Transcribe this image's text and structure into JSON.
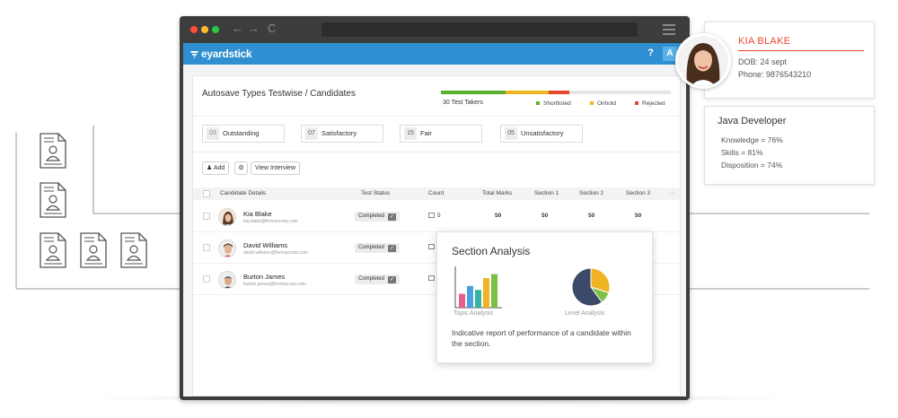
{
  "brand": {
    "name": "eyardstick",
    "color": "#2f8fd0"
  },
  "browser": {
    "nav_back": "←",
    "nav_forward": "→",
    "nav_reload": "C"
  },
  "appbar": {
    "help": "?",
    "account": "A"
  },
  "page": {
    "title": "Autosave Types Testwise / Candidates",
    "progress": {
      "label": "30 Test Takers",
      "segments": [
        {
          "name": "Shortlisted",
          "fraction": 0.28,
          "color": "#5bb12f"
        },
        {
          "name": "Onhold",
          "fraction": 0.19,
          "color": "#f0b323"
        },
        {
          "name": "Rejected",
          "fraction": 0.09,
          "color": "#e8452c"
        }
      ]
    },
    "ratings": [
      {
        "count": "03",
        "label": "Outstanding"
      },
      {
        "count": "07",
        "label": "Satisfactory"
      },
      {
        "count": "15",
        "label": "Fair"
      },
      {
        "count": "05",
        "label": "Unsatisfactory"
      }
    ],
    "actions": {
      "add": "Add",
      "view_interview": "View Interview"
    },
    "table": {
      "headers": [
        "Candidate Details",
        "Test Status",
        "Count",
        "Total Marks",
        "Section 1",
        "Section 2",
        "Section 3",
        "‹ ›"
      ],
      "rows": [
        {
          "name": "Kia Blake",
          "email": "kia.blake@formaccorp.com",
          "status": "Completed",
          "count": "5",
          "total": "50",
          "s1": "50",
          "s2": "50",
          "s3": "50"
        },
        {
          "name": "David Williams",
          "email": "david.williams@formaccorp.com",
          "status": "Completed",
          "count": "",
          "total": "",
          "s1": "",
          "s2": "",
          "s3": ""
        },
        {
          "name": "Burton James",
          "email": "burton.james@formaccorp.com",
          "status": "Completed",
          "count": "",
          "total": "",
          "s1": "",
          "s2": "",
          "s3": ""
        }
      ]
    }
  },
  "section_analysis": {
    "title": "Section Analysis",
    "topic_label": "Topic Analysis",
    "level_label": "Level Analysis",
    "description": "Indicative report of performance of a candidate within the section.",
    "bar_colors": [
      "#e85d8a",
      "#4aa3df",
      "#34b6a6",
      "#f0b323",
      "#7bc043"
    ],
    "bar_values": [
      0.35,
      0.55,
      0.45,
      0.75,
      0.85
    ],
    "pie": [
      {
        "value": 0.3,
        "color": "#f0b323"
      },
      {
        "value": 0.1,
        "color": "#7bc043"
      },
      {
        "value": 0.6,
        "color": "#3b4a6b"
      }
    ]
  },
  "profile": {
    "name": "KIA BLAKE",
    "dob": "DOB: 24 sept",
    "phone": "Phone: 9876543210"
  },
  "job": {
    "title": "Java Developer",
    "knowledge": "Knowledge = 76%",
    "skills": "Skills = 81%",
    "disposition": "Disposition = 74%"
  }
}
